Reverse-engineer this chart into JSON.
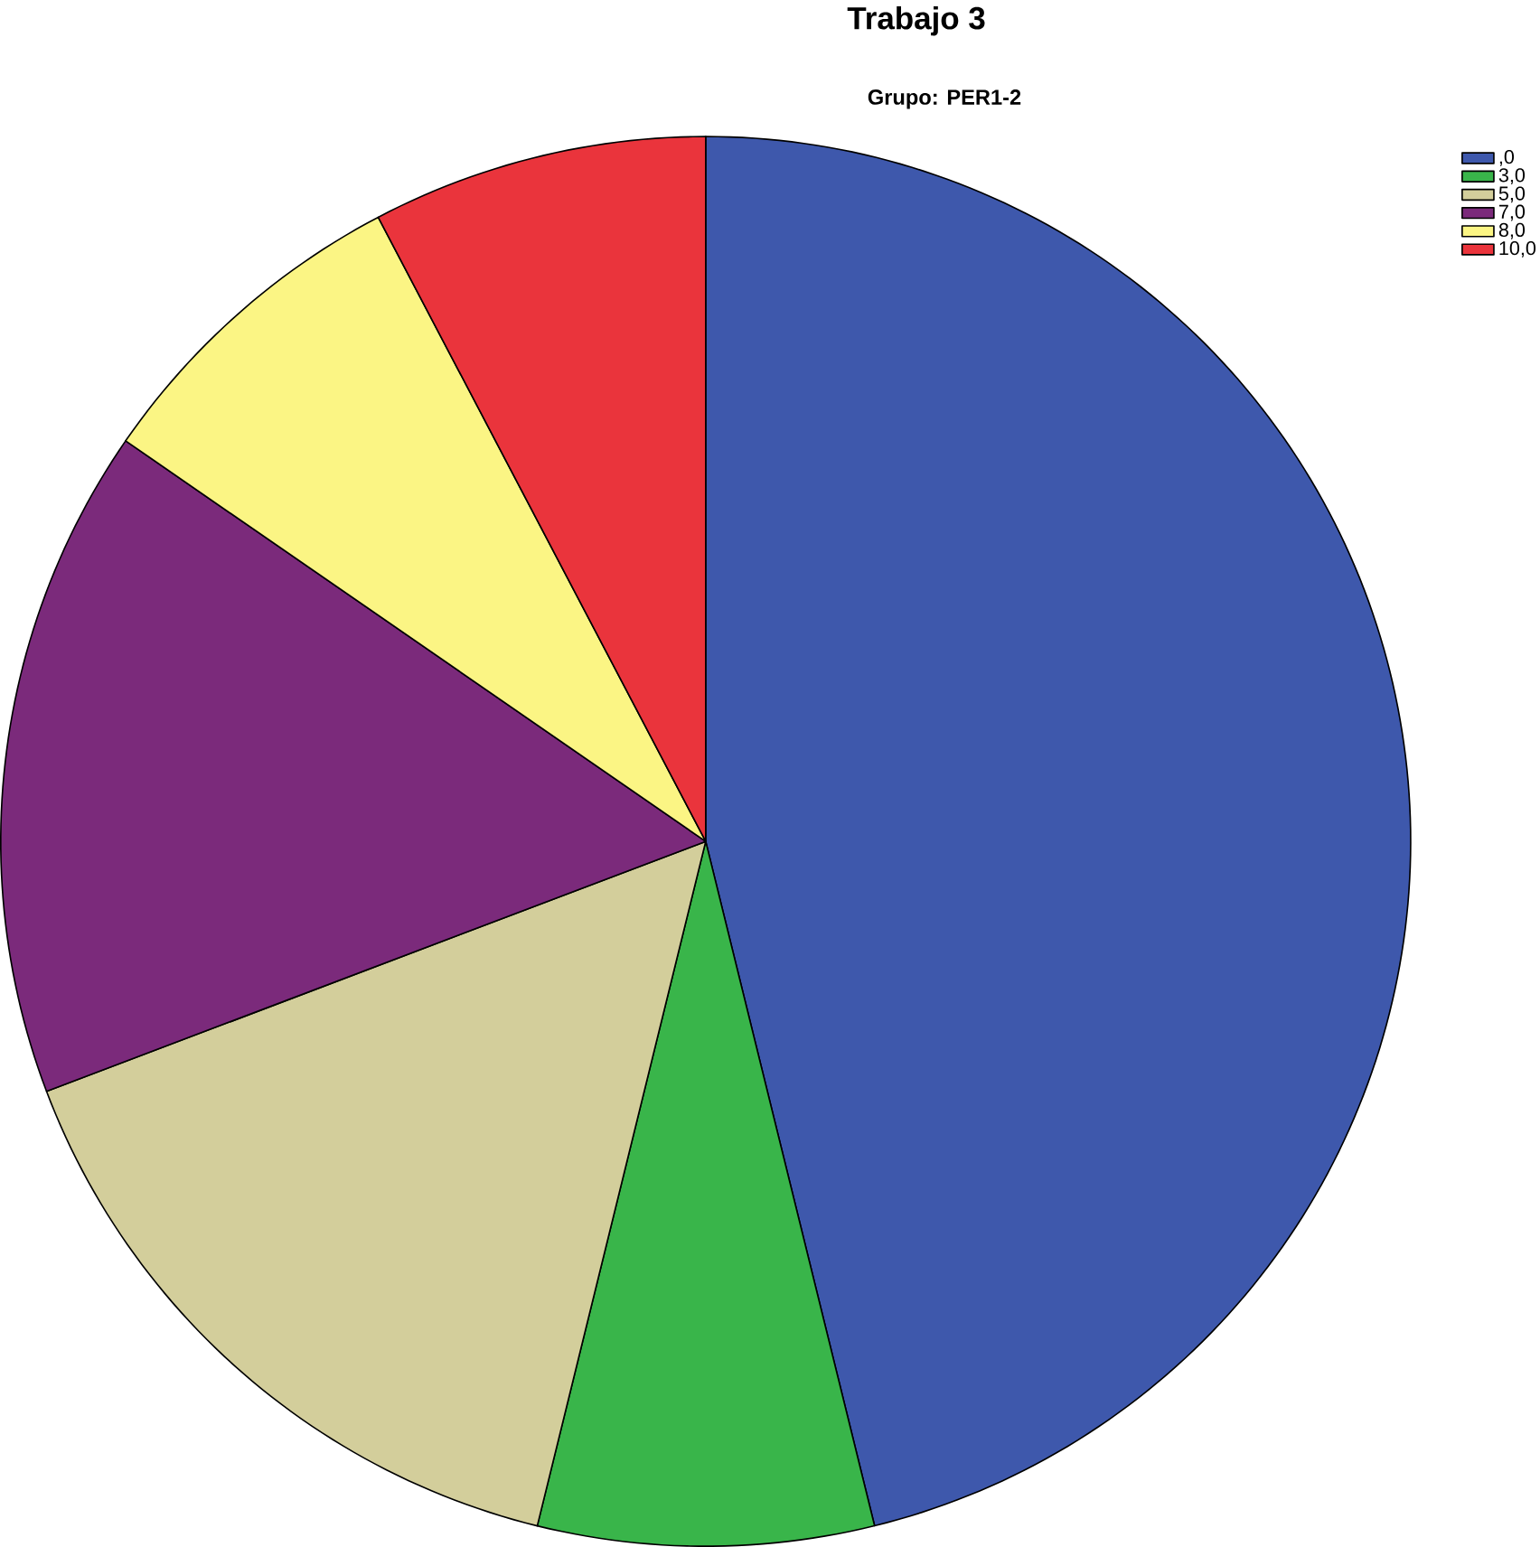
{
  "chart_data": {
    "type": "pie",
    "title": "Trabajo 3",
    "subtitle": "Grupo: PER1-2",
    "categories": [
      ",0",
      "3,0",
      "5,0",
      "7,0",
      "8,0",
      "10,0"
    ],
    "values": [
      46.15,
      7.69,
      15.39,
      15.39,
      7.69,
      7.69
    ],
    "colors": [
      "#3e58ac",
      "#39b54a",
      "#d3ce9b",
      "#7b2a7b",
      "#fbf584",
      "#ea343c"
    ],
    "legend": "top right"
  }
}
